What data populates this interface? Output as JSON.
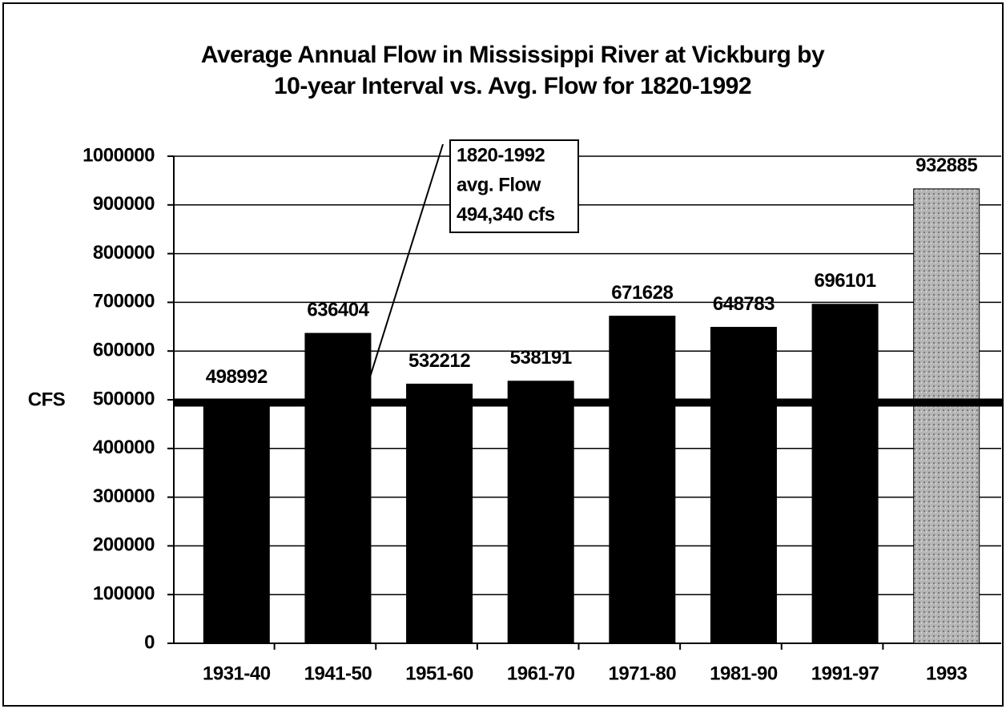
{
  "chart_data": {
    "type": "bar",
    "title": [
      "Average Annual Flow in Mississippi River at Vickburg by",
      "10-year Interval vs. Avg. Flow for 1820-1992"
    ],
    "ylabel": "CFS",
    "categories": [
      "1931-40",
      "1941-50",
      "1951-60",
      "1961-70",
      "1971-80",
      "1981-90",
      "1991-97",
      "1993"
    ],
    "values": [
      498992,
      636404,
      532212,
      538191,
      671628,
      648783,
      696101,
      932885
    ],
    "colors": [
      "#000000",
      "#000000",
      "#000000",
      "#000000",
      "#000000",
      "#000000",
      "#000000",
      "#a9a9a9"
    ],
    "ylim": [
      0,
      1000000
    ],
    "yticks": [
      0,
      100000,
      200000,
      300000,
      400000,
      500000,
      600000,
      700000,
      800000,
      900000,
      1000000
    ],
    "grid": true,
    "reference_line": 494340,
    "annotation": [
      "1820-1992",
      "avg. Flow",
      "494,340 cfs"
    ]
  }
}
